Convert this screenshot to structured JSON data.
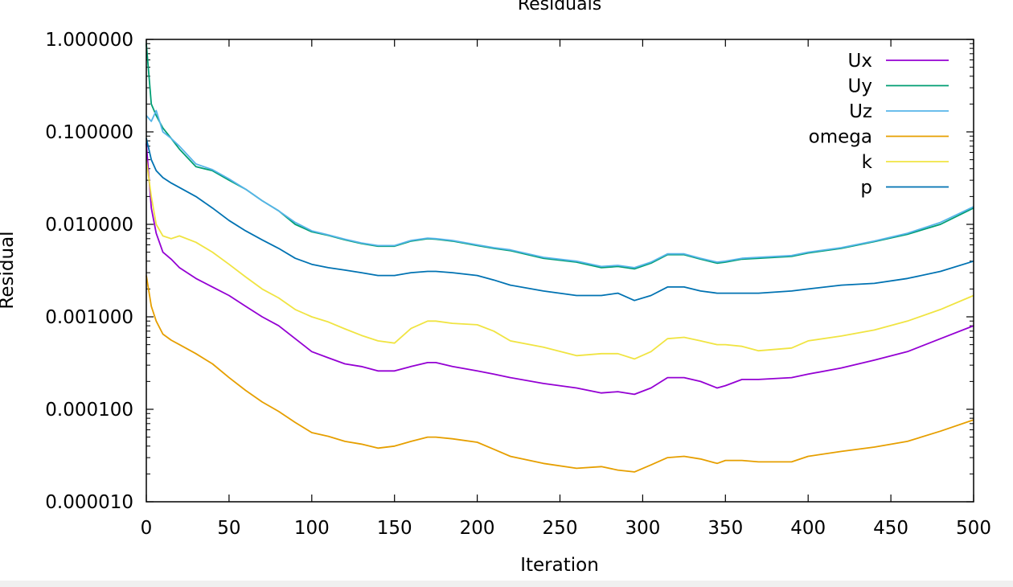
{
  "chart_data": {
    "type": "line",
    "title": "Residuals",
    "xlabel": "Iteration",
    "ylabel": "Residual",
    "xlim": [
      0,
      500
    ],
    "ylim": [
      1e-05,
      1
    ],
    "yscale": "log",
    "grid": false,
    "legend_position": "top-right",
    "x_ticks": [
      0,
      50,
      100,
      150,
      200,
      250,
      300,
      350,
      400,
      450,
      500
    ],
    "x_tick_labels": [
      "0",
      "50",
      "100",
      "150",
      "200",
      "250",
      "300",
      "350",
      "400",
      "450",
      "500"
    ],
    "y_ticks": [
      1e-05,
      0.0001,
      0.001,
      0.01,
      0.1,
      1
    ],
    "y_tick_labels": [
      "0.000010",
      "0.000100",
      "0.001000",
      "0.010000",
      "0.100000",
      "1.000000"
    ],
    "series": [
      {
        "name": "Ux",
        "color": "#9400d3",
        "x": [
          0,
          3,
          6,
          10,
          15,
          20,
          30,
          40,
          50,
          60,
          70,
          80,
          90,
          100,
          110,
          120,
          130,
          140,
          150,
          160,
          170,
          175,
          185,
          200,
          210,
          220,
          240,
          260,
          275,
          285,
          295,
          305,
          315,
          325,
          335,
          345,
          350,
          360,
          370,
          390,
          400,
          420,
          440,
          460,
          480,
          500
        ],
        "y": [
          0.075,
          0.015,
          0.008,
          0.005,
          0.0042,
          0.0034,
          0.0026,
          0.0021,
          0.0017,
          0.0013,
          0.001,
          0.0008,
          0.00058,
          0.00042,
          0.00036,
          0.00031,
          0.00029,
          0.00026,
          0.00026,
          0.00029,
          0.00032,
          0.00032,
          0.00029,
          0.00026,
          0.00024,
          0.00022,
          0.00019,
          0.00017,
          0.00015,
          0.000155,
          0.000145,
          0.00017,
          0.00022,
          0.00022,
          0.0002,
          0.00017,
          0.00018,
          0.00021,
          0.00021,
          0.00022,
          0.00024,
          0.00028,
          0.00034,
          0.00042,
          0.00058,
          0.0008
        ]
      },
      {
        "name": "Uy",
        "color": "#009e73",
        "x": [
          0,
          3,
          6,
          10,
          15,
          20,
          30,
          40,
          50,
          60,
          70,
          80,
          90,
          100,
          110,
          120,
          130,
          140,
          150,
          160,
          170,
          175,
          185,
          200,
          210,
          220,
          240,
          260,
          275,
          285,
          295,
          305,
          315,
          325,
          335,
          345,
          350,
          360,
          370,
          390,
          400,
          420,
          440,
          460,
          480,
          500
        ],
        "y": [
          0.9,
          0.2,
          0.15,
          0.11,
          0.085,
          0.065,
          0.042,
          0.038,
          0.03,
          0.024,
          0.018,
          0.014,
          0.01,
          0.0083,
          0.0076,
          0.0068,
          0.0062,
          0.0058,
          0.0058,
          0.0066,
          0.007,
          0.0069,
          0.0066,
          0.0059,
          0.0055,
          0.0052,
          0.0043,
          0.0039,
          0.0034,
          0.0035,
          0.0033,
          0.0038,
          0.0047,
          0.0047,
          0.0042,
          0.0038,
          0.0039,
          0.0042,
          0.0043,
          0.0045,
          0.0049,
          0.0055,
          0.0065,
          0.0078,
          0.01,
          0.015
        ]
      },
      {
        "name": "Uz",
        "color": "#56b4e9",
        "x": [
          0,
          3,
          6,
          10,
          15,
          20,
          30,
          40,
          50,
          60,
          70,
          80,
          90,
          100,
          110,
          120,
          130,
          140,
          150,
          160,
          170,
          175,
          185,
          200,
          210,
          220,
          240,
          260,
          275,
          285,
          295,
          305,
          315,
          325,
          335,
          345,
          350,
          360,
          370,
          390,
          400,
          420,
          440,
          460,
          480,
          500
        ],
        "y": [
          0.15,
          0.13,
          0.17,
          0.1,
          0.085,
          0.07,
          0.045,
          0.039,
          0.031,
          0.024,
          0.018,
          0.014,
          0.0105,
          0.0085,
          0.0077,
          0.0069,
          0.0063,
          0.0059,
          0.0059,
          0.0067,
          0.0071,
          0.007,
          0.0067,
          0.006,
          0.0056,
          0.0053,
          0.0044,
          0.004,
          0.0035,
          0.0036,
          0.0034,
          0.0039,
          0.0048,
          0.0048,
          0.0043,
          0.0039,
          0.004,
          0.0043,
          0.0044,
          0.0046,
          0.005,
          0.0056,
          0.0066,
          0.008,
          0.0105,
          0.0155
        ]
      },
      {
        "name": "omega",
        "color": "#e69f00",
        "x": [
          0,
          3,
          6,
          10,
          15,
          20,
          30,
          40,
          50,
          60,
          70,
          80,
          90,
          100,
          110,
          120,
          130,
          140,
          150,
          160,
          170,
          175,
          185,
          200,
          210,
          220,
          240,
          260,
          275,
          285,
          295,
          305,
          315,
          325,
          335,
          345,
          350,
          360,
          370,
          390,
          400,
          420,
          440,
          460,
          480,
          500
        ],
        "y": [
          0.0028,
          0.0013,
          0.0009,
          0.00065,
          0.00056,
          0.0005,
          0.0004,
          0.00031,
          0.00022,
          0.00016,
          0.00012,
          9.5e-05,
          7.2e-05,
          5.6e-05,
          5.1e-05,
          4.5e-05,
          4.2e-05,
          3.8e-05,
          4e-05,
          4.5e-05,
          5e-05,
          5e-05,
          4.8e-05,
          4.4e-05,
          3.7e-05,
          3.1e-05,
          2.6e-05,
          2.3e-05,
          2.4e-05,
          2.2e-05,
          2.1e-05,
          2.5e-05,
          3e-05,
          3.1e-05,
          2.9e-05,
          2.6e-05,
          2.8e-05,
          2.8e-05,
          2.7e-05,
          2.7e-05,
          3.1e-05,
          3.5e-05,
          3.9e-05,
          4.5e-05,
          5.8e-05,
          7.7e-05
        ]
      },
      {
        "name": "k",
        "color": "#f0e442",
        "x": [
          0,
          3,
          6,
          10,
          15,
          20,
          30,
          40,
          50,
          60,
          70,
          80,
          90,
          100,
          110,
          120,
          130,
          140,
          150,
          160,
          170,
          175,
          185,
          200,
          210,
          220,
          240,
          260,
          275,
          285,
          295,
          305,
          315,
          325,
          335,
          345,
          350,
          360,
          370,
          390,
          400,
          420,
          440,
          460,
          480,
          500
        ],
        "y": [
          0.05,
          0.02,
          0.01,
          0.0075,
          0.007,
          0.0075,
          0.0064,
          0.005,
          0.0037,
          0.0027,
          0.002,
          0.0016,
          0.0012,
          0.001,
          0.00088,
          0.00074,
          0.00063,
          0.00055,
          0.00052,
          0.00075,
          0.0009,
          0.0009,
          0.00085,
          0.00082,
          0.0007,
          0.00055,
          0.00047,
          0.00038,
          0.0004,
          0.0004,
          0.00035,
          0.00042,
          0.00058,
          0.0006,
          0.00055,
          0.0005,
          0.0005,
          0.00048,
          0.00043,
          0.00046,
          0.00055,
          0.00062,
          0.00072,
          0.0009,
          0.0012,
          0.0017
        ]
      },
      {
        "name": "p",
        "color": "#0072b2",
        "x": [
          0,
          3,
          6,
          10,
          15,
          20,
          30,
          40,
          50,
          60,
          70,
          80,
          90,
          100,
          110,
          120,
          130,
          140,
          150,
          160,
          170,
          175,
          185,
          200,
          210,
          220,
          240,
          260,
          275,
          285,
          295,
          305,
          315,
          325,
          335,
          345,
          350,
          360,
          370,
          390,
          400,
          420,
          440,
          460,
          480,
          500
        ],
        "y": [
          0.085,
          0.05,
          0.038,
          0.032,
          0.028,
          0.025,
          0.02,
          0.015,
          0.011,
          0.0085,
          0.0068,
          0.0055,
          0.0043,
          0.0037,
          0.0034,
          0.0032,
          0.003,
          0.0028,
          0.0028,
          0.003,
          0.0031,
          0.0031,
          0.003,
          0.0028,
          0.0025,
          0.0022,
          0.0019,
          0.0017,
          0.0017,
          0.0018,
          0.0015,
          0.0017,
          0.0021,
          0.0021,
          0.0019,
          0.0018,
          0.0018,
          0.0018,
          0.0018,
          0.0019,
          0.002,
          0.0022,
          0.0023,
          0.0026,
          0.0031,
          0.004
        ]
      }
    ]
  }
}
